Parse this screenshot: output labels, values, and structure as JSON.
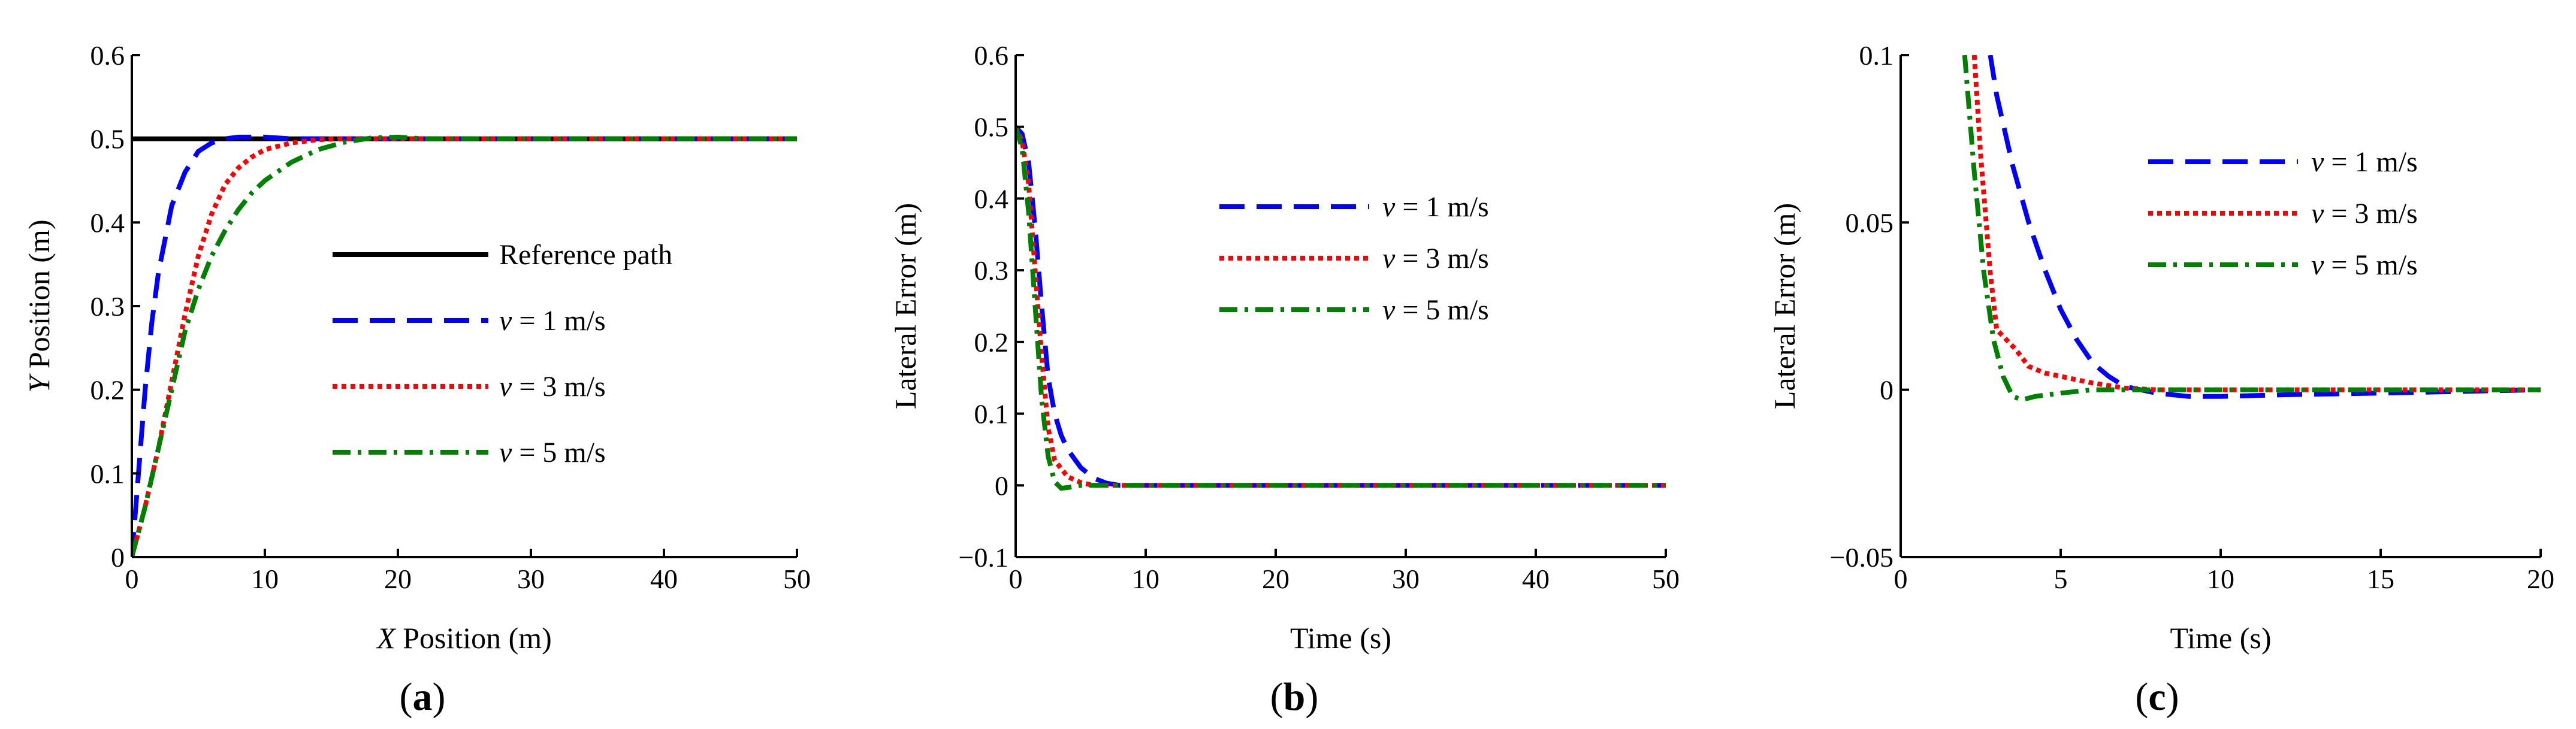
{
  "chart_data": [
    {
      "type": "line",
      "panel_label": "a",
      "xlabel": {
        "var": "X",
        "rest": " Position (m)"
      },
      "ylabel": {
        "var": "Y",
        "rest": " Position (m)"
      },
      "xlim": [
        0,
        50
      ],
      "ylim": [
        0,
        0.6
      ],
      "xticks": [
        0,
        10,
        20,
        30,
        40,
        50
      ],
      "yticks": [
        0,
        0.1,
        0.2,
        0.3,
        0.4,
        0.5,
        0.6
      ],
      "xtick_labels": [
        "0",
        "10",
        "20",
        "30",
        "40",
        "50"
      ],
      "ytick_labels": [
        "0",
        "0.1",
        "0.2",
        "0.3",
        "0.4",
        "0.5",
        "0.6"
      ],
      "legend_position": "center-right",
      "series": [
        {
          "name": "Reference path",
          "style": "solid",
          "color": "#000000",
          "x": [
            0,
            50
          ],
          "y": [
            0.5,
            0.5
          ]
        },
        {
          "name": {
            "var": "v",
            "rest": " = 1 m/s"
          },
          "style": "dashed",
          "color": "#0000ff",
          "x": [
            0,
            0.5,
            1,
            1.5,
            2,
            3,
            4,
            5,
            6,
            7,
            8,
            10,
            12,
            50
          ],
          "y": [
            0,
            0.1,
            0.2,
            0.28,
            0.34,
            0.42,
            0.46,
            0.485,
            0.495,
            0.5,
            0.502,
            0.502,
            0.5,
            0.5
          ]
        },
        {
          "name": {
            "var": "v",
            "rest": " = 3 m/s"
          },
          "style": "dotted",
          "color": "#ff0000",
          "x": [
            0,
            1,
            2,
            3,
            4,
            5,
            6,
            7,
            8,
            9,
            10,
            12,
            14,
            16,
            50
          ],
          "y": [
            0,
            0.06,
            0.13,
            0.21,
            0.29,
            0.36,
            0.41,
            0.445,
            0.465,
            0.478,
            0.487,
            0.495,
            0.499,
            0.5,
            0.5
          ]
        },
        {
          "name": {
            "var": "v",
            "rest": " = 5 m/s"
          },
          "style": "dashdot",
          "color": "#008000",
          "x": [
            0,
            1,
            2,
            3,
            4,
            5,
            6,
            7,
            8,
            9,
            10,
            12,
            14,
            16,
            18,
            20,
            22,
            50
          ],
          "y": [
            0,
            0.06,
            0.13,
            0.2,
            0.27,
            0.32,
            0.36,
            0.39,
            0.415,
            0.435,
            0.45,
            0.472,
            0.487,
            0.496,
            0.501,
            0.502,
            0.5,
            0.5
          ]
        }
      ]
    },
    {
      "type": "line",
      "panel_label": "b",
      "xlabel": {
        "var": "",
        "rest": "Time (s)"
      },
      "ylabel": {
        "var": "",
        "rest": "Lateral Error (m)"
      },
      "xlim": [
        0,
        50
      ],
      "ylim": [
        -0.1,
        0.6
      ],
      "xticks": [
        0,
        10,
        20,
        30,
        40,
        50
      ],
      "yticks": [
        -0.1,
        0,
        0.1,
        0.2,
        0.3,
        0.4,
        0.5,
        0.6
      ],
      "xtick_labels": [
        "0",
        "10",
        "20",
        "30",
        "40",
        "50"
      ],
      "ytick_labels": [
        "−0.1",
        "0",
        "0.1",
        "0.2",
        "0.3",
        "0.4",
        "0.5",
        "0.6"
      ],
      "legend_position": "top-right",
      "series": [
        {
          "name": {
            "var": "v",
            "rest": " = 1 m/s"
          },
          "style": "dashed",
          "color": "#0000ff",
          "x": [
            0,
            0.5,
            1,
            1.5,
            2,
            2.5,
            3,
            3.5,
            4,
            5,
            6,
            7,
            8,
            50
          ],
          "y": [
            0.5,
            0.49,
            0.45,
            0.36,
            0.25,
            0.15,
            0.1,
            0.07,
            0.05,
            0.025,
            0.01,
            0.003,
            0,
            0
          ]
        },
        {
          "name": {
            "var": "v",
            "rest": " = 3 m/s"
          },
          "style": "dotted",
          "color": "#ff0000",
          "x": [
            0,
            0.5,
            1,
            1.5,
            2,
            2.5,
            3,
            4,
            5,
            6,
            50
          ],
          "y": [
            0.5,
            0.48,
            0.42,
            0.3,
            0.18,
            0.08,
            0.035,
            0.012,
            0.004,
            0,
            0
          ]
        },
        {
          "name": {
            "var": "v",
            "rest": " = 5 m/s"
          },
          "style": "dashdot",
          "color": "#008000",
          "x": [
            0,
            0.5,
            1,
            1.5,
            2,
            2.5,
            3,
            3.5,
            4,
            5,
            6,
            50
          ],
          "y": [
            0.5,
            0.47,
            0.38,
            0.25,
            0.12,
            0.04,
            0.005,
            -0.004,
            -0.003,
            0,
            0,
            0
          ]
        }
      ]
    },
    {
      "type": "line",
      "panel_label": "c",
      "xlabel": {
        "var": "",
        "rest": "Time (s)"
      },
      "ylabel": {
        "var": "",
        "rest": "Lateral Error (m)"
      },
      "xlim": [
        0,
        20
      ],
      "ylim": [
        -0.05,
        0.1
      ],
      "xticks": [
        0,
        5,
        10,
        15,
        20
      ],
      "yticks": [
        -0.05,
        0,
        0.05,
        0.1
      ],
      "xtick_labels": [
        "0",
        "5",
        "10",
        "15",
        "20"
      ],
      "ytick_labels": [
        "−0.05",
        "0",
        "0.05",
        "0.1"
      ],
      "legend_position": "top-right",
      "series": [
        {
          "name": {
            "var": "v",
            "rest": " = 1 m/s"
          },
          "style": "dashed",
          "color": "#0000ff",
          "x": [
            2.8,
            3,
            3.5,
            4,
            4.5,
            5,
            5.5,
            6,
            6.5,
            7,
            8,
            9,
            10,
            12,
            15,
            20
          ],
          "y": [
            0.1,
            0.088,
            0.067,
            0.05,
            0.036,
            0.024,
            0.015,
            0.008,
            0.004,
            0.001,
            -0.001,
            -0.002,
            -0.002,
            -0.0015,
            -0.001,
            0
          ]
        },
        {
          "name": {
            "var": "v",
            "rest": " = 3 m/s"
          },
          "style": "dotted",
          "color": "#ff0000",
          "x": [
            2.3,
            2.5,
            2.8,
            3,
            3.3,
            3.6,
            4,
            4.5,
            5,
            6,
            7,
            8,
            10,
            15,
            20
          ],
          "y": [
            0.1,
            0.07,
            0.035,
            0.018,
            0.015,
            0.012,
            0.007,
            0.005,
            0.004,
            0.002,
            0.0005,
            0,
            0,
            0,
            0
          ]
        },
        {
          "name": {
            "var": "v",
            "rest": " = 5 m/s"
          },
          "style": "dashdot",
          "color": "#008000",
          "x": [
            2,
            2.3,
            2.6,
            2.9,
            3.2,
            3.5,
            3.8,
            4.2,
            5,
            6,
            8,
            10,
            15,
            20
          ],
          "y": [
            0.1,
            0.065,
            0.035,
            0.015,
            0.004,
            -0.002,
            -0.003,
            -0.002,
            -0.001,
            0,
            0,
            0,
            0,
            0
          ]
        }
      ]
    }
  ]
}
